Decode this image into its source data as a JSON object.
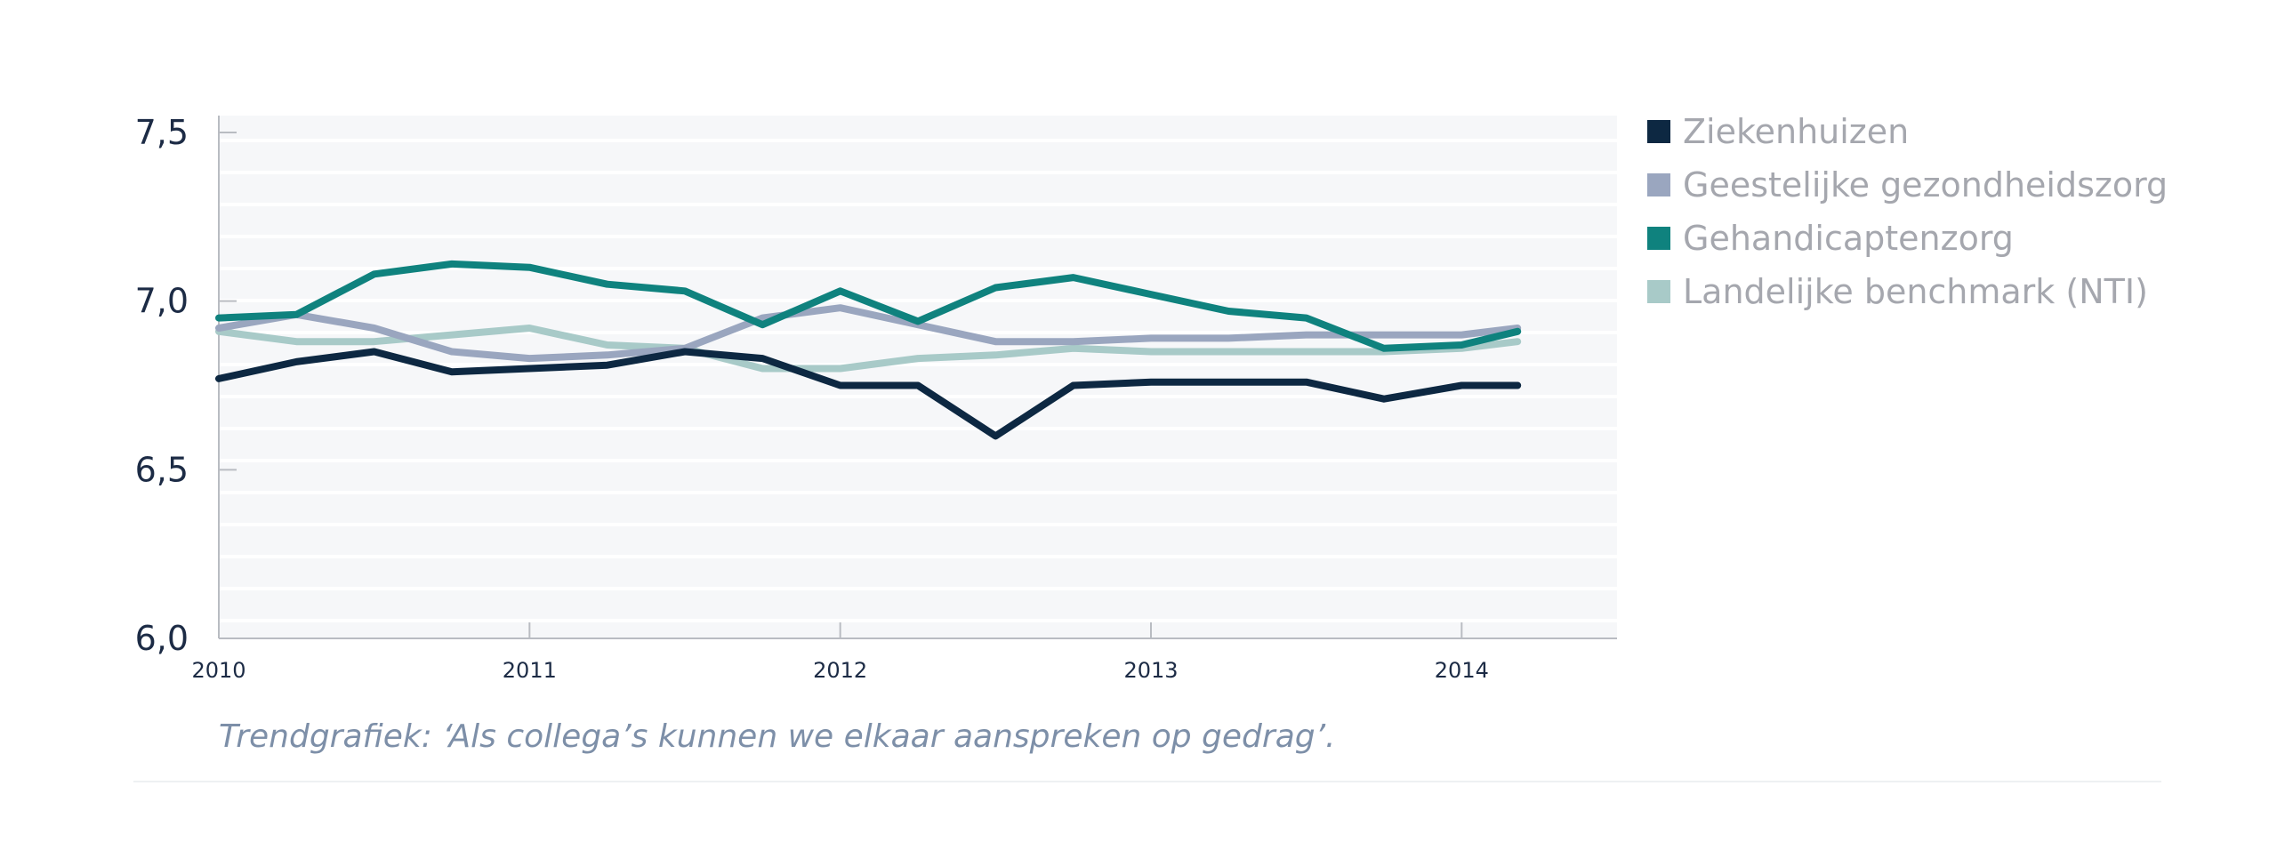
{
  "chart_data": {
    "type": "line",
    "y_ticks": [
      "7,5",
      "7,0",
      "6,5",
      "6,0"
    ],
    "y_tick_values": [
      7.5,
      7.0,
      6.5,
      6.0
    ],
    "x_ticks": [
      "2010",
      "2011",
      "2012",
      "2013",
      "2014"
    ],
    "x_tick_values": [
      2010,
      2011,
      2012,
      2013,
      2014
    ],
    "xlim": [
      2010,
      2014.5
    ],
    "ylim": [
      6.0,
      7.55
    ],
    "grid": "horizontal stripes",
    "legend_position": "right",
    "series": [
      {
        "name": "Ziekenhuizen",
        "color": "#0d2842",
        "x": [
          2010.0,
          2010.25,
          2010.5,
          2010.75,
          2011.0,
          2011.25,
          2011.5,
          2011.75,
          2012.0,
          2012.25,
          2012.5,
          2012.75,
          2013.0,
          2013.25,
          2013.5,
          2013.75,
          2014.0,
          2014.18
        ],
        "values": [
          6.77,
          6.82,
          6.85,
          6.79,
          6.8,
          6.81,
          6.85,
          6.83,
          6.75,
          6.75,
          6.6,
          6.75,
          6.76,
          6.76,
          6.76,
          6.71,
          6.75,
          6.75
        ]
      },
      {
        "name": "Geestelijke gezondheidszorg",
        "color": "#9aa6bf",
        "x": [
          2010.0,
          2010.25,
          2010.5,
          2010.75,
          2011.0,
          2011.25,
          2011.5,
          2011.75,
          2012.0,
          2012.25,
          2012.5,
          2012.75,
          2013.0,
          2013.25,
          2013.5,
          2013.75,
          2014.0,
          2014.18
        ],
        "values": [
          6.92,
          6.96,
          6.92,
          6.85,
          6.83,
          6.84,
          6.86,
          6.95,
          6.98,
          6.93,
          6.88,
          6.88,
          6.89,
          6.89,
          6.9,
          6.9,
          6.9,
          6.92
        ]
      },
      {
        "name": "Gehandicaptenzorg",
        "color": "#0f827e",
        "x": [
          2010.0,
          2010.25,
          2010.5,
          2010.75,
          2011.0,
          2011.25,
          2011.5,
          2011.75,
          2012.0,
          2012.25,
          2012.5,
          2012.75,
          2013.0,
          2013.25,
          2013.5,
          2013.75,
          2014.0,
          2014.18
        ],
        "values": [
          6.95,
          6.96,
          7.08,
          7.11,
          7.1,
          7.05,
          7.03,
          6.93,
          7.03,
          6.94,
          7.04,
          7.07,
          7.02,
          6.97,
          6.95,
          6.86,
          6.87,
          6.91
        ]
      },
      {
        "name": "Landelijke benchmark (NTI)",
        "color": "#a8cac8",
        "x": [
          2010.0,
          2010.25,
          2010.5,
          2010.75,
          2011.0,
          2011.25,
          2011.5,
          2011.75,
          2012.0,
          2012.25,
          2012.5,
          2012.75,
          2013.0,
          2013.25,
          2013.5,
          2013.75,
          2014.0,
          2014.18
        ],
        "values": [
          6.91,
          6.88,
          6.88,
          6.9,
          6.92,
          6.87,
          6.86,
          6.8,
          6.8,
          6.83,
          6.84,
          6.86,
          6.85,
          6.85,
          6.85,
          6.85,
          6.86,
          6.88
        ]
      }
    ]
  },
  "caption": "Trendgrafiek: ‘Als collega’s kunnen we elkaar aanspreken op gedrag’."
}
